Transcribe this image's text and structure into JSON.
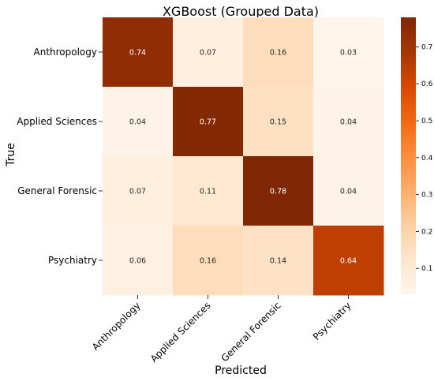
{
  "chart_data": {
    "type": "heatmap",
    "title": "XGBoost (Grouped Data)",
    "xlabel": "Predicted",
    "ylabel": "True",
    "x_categories": [
      "Anthropology",
      "Applied Sciences",
      "General Forensic",
      "Psychiatry"
    ],
    "y_categories": [
      "Anthropology",
      "Applied Sciences",
      "General Forensic",
      "Psychiatry"
    ],
    "values": [
      [
        0.74,
        0.07,
        0.16,
        0.03
      ],
      [
        0.04,
        0.77,
        0.15,
        0.04
      ],
      [
        0.07,
        0.11,
        0.78,
        0.04
      ],
      [
        0.06,
        0.16,
        0.14,
        0.64
      ]
    ],
    "value_labels": [
      [
        "0.74",
        "0.07",
        "0.16",
        "0.03"
      ],
      [
        "0.04",
        "0.77",
        "0.15",
        "0.04"
      ],
      [
        "0.07",
        "0.11",
        "0.78",
        "0.04"
      ],
      [
        "0.06",
        "0.16",
        "0.14",
        "0.64"
      ]
    ],
    "colormap": "Oranges",
    "color_range": [
      0.03,
      0.78
    ],
    "colorbar_ticks": [
      0.1,
      0.2,
      0.3,
      0.4,
      0.5,
      0.6,
      0.7
    ],
    "colorbar_tick_labels": [
      "0.1",
      "0.2",
      "0.3",
      "0.4",
      "0.5",
      "0.6",
      "0.7"
    ],
    "legend": "colorbar-right",
    "grid": false
  }
}
